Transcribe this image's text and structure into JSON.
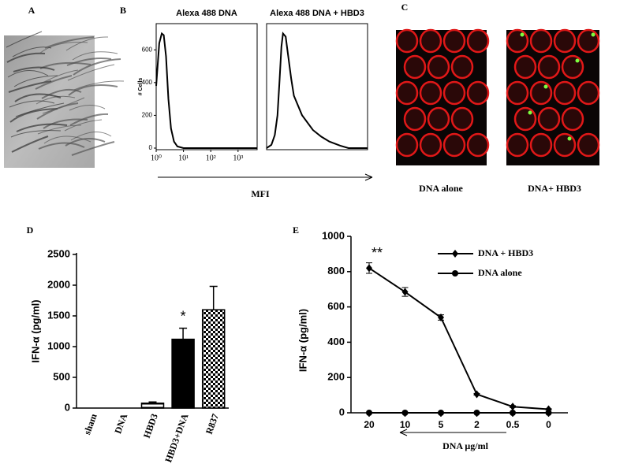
{
  "panel_labels": [
    "A",
    "B",
    "C",
    "D",
    "E"
  ],
  "image_captions": [
    "DNA alone",
    "DNA+ HBD3"
  ],
  "chart_data": [
    {
      "type": "line",
      "title": "Alexa 488 DNA",
      "ylabel": "# Cells",
      "xlabel": "MFI",
      "xscale": "log",
      "x": [
        1,
        1.3,
        1.6,
        1.9,
        2.3,
        2.8,
        3.5,
        4.5,
        6,
        10,
        5000
      ],
      "values": [
        380,
        640,
        700,
        690,
        560,
        300,
        120,
        40,
        10,
        0,
        0
      ],
      "color": "#000000",
      "xlim": [
        1,
        5000
      ],
      "ylim": [
        0,
        760
      ],
      "xticks": [
        {
          "value": 1,
          "label": "10⁰"
        },
        {
          "value": 10,
          "label": "10¹"
        },
        {
          "value": 100,
          "label": "10²"
        },
        {
          "value": 1000,
          "label": "10³"
        }
      ],
      "yticks": [
        0,
        200,
        400,
        600
      ]
    },
    {
      "type": "line",
      "title": "Alexa 488 DNA + HBD3",
      "xscale": "log",
      "x": [
        1,
        1.5,
        2,
        2.5,
        3,
        3.5,
        4,
        5,
        6,
        8,
        10,
        20,
        50,
        100,
        200,
        500,
        1000,
        5000
      ],
      "values": [
        0,
        20,
        80,
        200,
        420,
        620,
        700,
        680,
        580,
        420,
        320,
        200,
        110,
        70,
        40,
        15,
        0,
        0
      ],
      "color": "#000000",
      "xlim": [
        1,
        5000
      ],
      "ylim": [
        0,
        760
      ]
    },
    {
      "type": "bar",
      "ylabel": "IFN-α (pg/ml)",
      "categories": [
        "sham",
        "DNA",
        "HBD3",
        "HBD3+DNA",
        "R837"
      ],
      "values": [
        0,
        0,
        80,
        1120,
        1600
      ],
      "errors": [
        0,
        0,
        20,
        180,
        380
      ],
      "patterns": [
        "none",
        "none",
        "horizontal-lines",
        "solid",
        "checker"
      ],
      "ylim": [
        0,
        2500
      ],
      "yticks": [
        0,
        500,
        1000,
        1500,
        2000,
        2500
      ],
      "annotations": [
        {
          "text": "*",
          "category": 3
        }
      ]
    },
    {
      "type": "line-category",
      "ylabel": "IFN-α (pg/ml)",
      "xlabel": "DNA  μg/ml",
      "categories": [
        "20",
        "10",
        "5",
        "2",
        "0.5",
        "0"
      ],
      "series": [
        {
          "name": "DNA + HBD3",
          "color": "#000000",
          "marker": "diamond",
          "values": [
            820,
            685,
            540,
            105,
            35,
            20
          ],
          "errors": [
            30,
            25,
            15,
            5,
            5,
            3
          ]
        },
        {
          "name": "DNA alone",
          "color": "#000000",
          "marker": "circle",
          "values": [
            0,
            0,
            0,
            0,
            0,
            0
          ],
          "errors": [
            0,
            0,
            0,
            0,
            0,
            0
          ]
        }
      ],
      "ylim": [
        0,
        1000
      ],
      "yticks": [
        0,
        200,
        400,
        600,
        800,
        1000
      ],
      "annotations": [
        {
          "text": "**",
          "category": 0
        }
      ]
    }
  ]
}
